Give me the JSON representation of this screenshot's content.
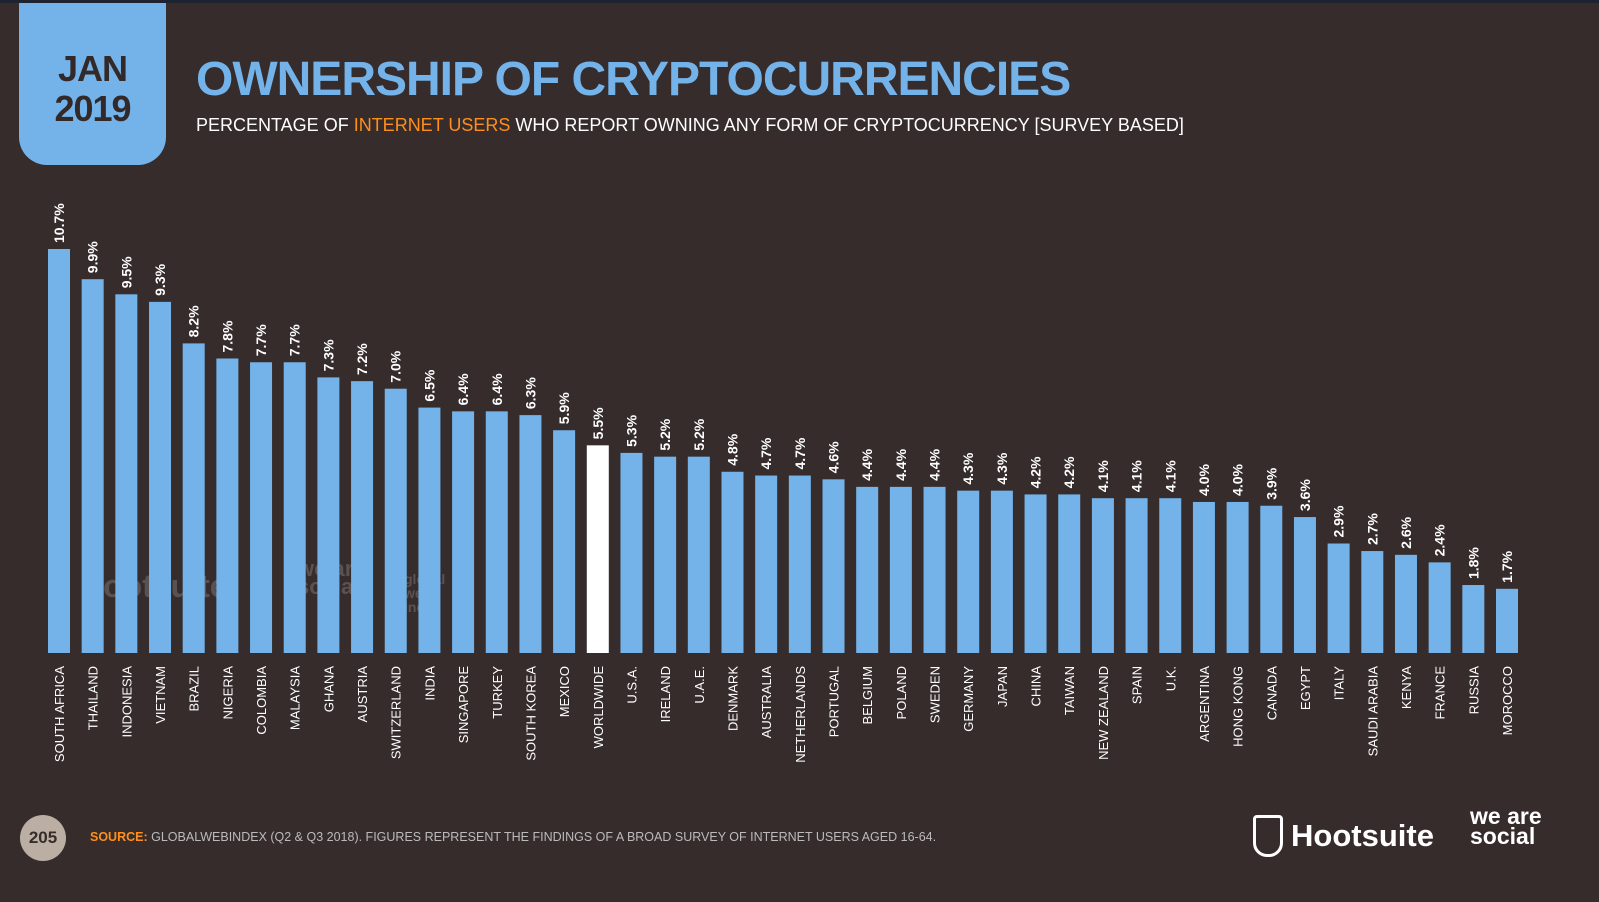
{
  "header": {
    "date_month": "JAN",
    "date_year": "2019",
    "title": "OWNERSHIP OF CRYPTOCURRENCIES",
    "subtitle_pre": "PERCENTAGE OF ",
    "subtitle_highlight": "INTERNET USERS",
    "subtitle_post": " WHO REPORT OWNING ANY FORM OF CRYPTOCURRENCY [SURVEY BASED]"
  },
  "footer": {
    "page_number": "205",
    "source_label": "SOURCE:",
    "source_text": " GLOBALWEBINDEX (Q2 & Q3 2018). FIGURES REPRESENT THE FINDINGS OF A BROAD SURVEY OF INTERNET USERS AGED 16-64.",
    "logo_hootsuite": "Hootsuite",
    "logo_wearesocial": "we are social"
  },
  "watermarks": {
    "hootsuite": "Hootsuite",
    "wearesocial": "we are social",
    "gwi": "global web index"
  },
  "colors": {
    "background": "#362c2c",
    "bar": "#74b3e9",
    "highlight_bar": "#ffffff",
    "accent": "#ff8f1c"
  },
  "chart_data": {
    "type": "bar",
    "orientation": "vertical",
    "ylim": [
      0,
      10.7
    ],
    "grid": false,
    "highlight_category": "WORLDWIDE",
    "categories": [
      "SOUTH AFRICA",
      "THAILAND",
      "INDONESIA",
      "VIETNAM",
      "BRAZIL",
      "NIGERIA",
      "COLOMBIA",
      "MALAYSIA",
      "GHANA",
      "AUSTRIA",
      "SWITZERLAND",
      "INDIA",
      "SINGAPORE",
      "TURKEY",
      "SOUTH KOREA",
      "MEXICO",
      "WORLDWIDE",
      "U.S.A.",
      "IRELAND",
      "U.A.E.",
      "DENMARK",
      "AUSTRALIA",
      "NETHERLANDS",
      "PORTUGAL",
      "BELGIUM",
      "POLAND",
      "SWEDEN",
      "GERMANY",
      "JAPAN",
      "CHINA",
      "TAIWAN",
      "NEW ZEALAND",
      "SPAIN",
      "U.K.",
      "ARGENTINA",
      "HONG KONG",
      "CANADA",
      "EGYPT",
      "ITALY",
      "SAUDI ARABIA",
      "KENYA",
      "FRANCE",
      "RUSSIA",
      "MOROCCO"
    ],
    "values": [
      10.7,
      9.9,
      9.5,
      9.3,
      8.2,
      7.8,
      7.7,
      7.7,
      7.3,
      7.2,
      7.0,
      6.5,
      6.4,
      6.4,
      6.3,
      5.9,
      5.5,
      5.3,
      5.2,
      5.2,
      4.8,
      4.7,
      4.7,
      4.6,
      4.4,
      4.4,
      4.4,
      4.3,
      4.3,
      4.2,
      4.2,
      4.1,
      4.1,
      4.1,
      4.0,
      4.0,
      3.9,
      3.6,
      2.9,
      2.7,
      2.6,
      2.4,
      1.8,
      1.7
    ],
    "data_labels": [
      "10.7%",
      "9.9%",
      "9.5%",
      "9.3%",
      "8.2%",
      "7.8%",
      "7.7%",
      "7.7%",
      "7.3%",
      "7.2%",
      "7.0%",
      "6.5%",
      "6.4%",
      "6.4%",
      "6.3%",
      "5.9%",
      "5.5%",
      "5.3%",
      "5.2%",
      "5.2%",
      "4.8%",
      "4.7%",
      "4.7%",
      "4.6%",
      "4.4%",
      "4.4%",
      "4.4%",
      "4.3%",
      "4.3%",
      "4.2%",
      "4.2%",
      "4.1%",
      "4.1%",
      "4.1%",
      "4.0%",
      "4.0%",
      "3.9%",
      "3.6%",
      "2.9%",
      "2.7%",
      "2.6%",
      "2.4%",
      "1.8%",
      "1.7%"
    ]
  }
}
